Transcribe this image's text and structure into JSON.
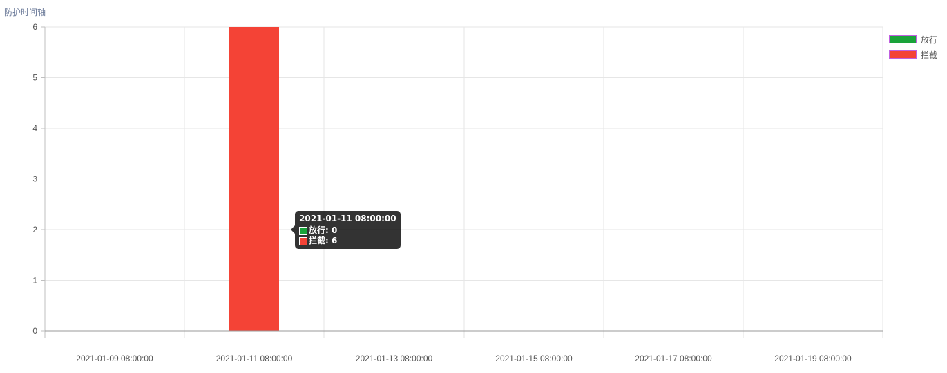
{
  "title": "防护时间轴",
  "colors": {
    "pass": "#1aa33a",
    "block": "#f44336",
    "grid": "#e6e6e6",
    "axis": "#bfbfbf"
  },
  "legend": [
    {
      "label": "放行",
      "color": "#1aa33a"
    },
    {
      "label": "拦截",
      "color": "#f44336"
    }
  ],
  "tooltip": {
    "title": "2021-01-11 08:00:00",
    "rows": [
      {
        "label": "放行: 0",
        "color": "#1aa33a"
      },
      {
        "label": "拦截: 6",
        "color": "#f44336"
      }
    ]
  },
  "chart_data": {
    "type": "bar",
    "title": "防护时间轴",
    "x_ticks": [
      "2021-01-09 08:00:00",
      "2021-01-11 08:00:00",
      "2021-01-13 08:00:00",
      "2021-01-15 08:00:00",
      "2021-01-17 08:00:00",
      "2021-01-19 08:00:00"
    ],
    "y_ticks": [
      "0",
      "1",
      "2",
      "3",
      "4",
      "5",
      "6"
    ],
    "ylim": [
      0,
      6
    ],
    "grid": true,
    "legend_position": "top-right",
    "series": [
      {
        "name": "放行",
        "color": "#1aa33a",
        "points": [
          {
            "x": "2021-01-11 08:00:00",
            "y": 0
          }
        ]
      },
      {
        "name": "拦截",
        "color": "#f44336",
        "points": [
          {
            "x": "2021-01-11 08:00:00",
            "y": 6
          }
        ]
      }
    ]
  }
}
